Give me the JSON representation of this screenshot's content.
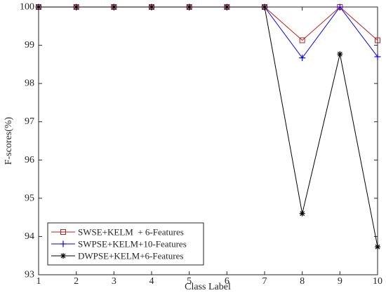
{
  "chart_data": {
    "type": "line",
    "title": "",
    "xlabel": "Class Label",
    "ylabel": "F-scores(%)",
    "x": [
      1,
      2,
      3,
      4,
      5,
      6,
      7,
      8,
      9,
      10
    ],
    "xlim": [
      1,
      10
    ],
    "ylim": [
      93,
      100
    ],
    "xticks": [
      "1",
      "2",
      "3",
      "4",
      "5",
      "6",
      "7",
      "8",
      "9",
      "10"
    ],
    "yticks": [
      "93",
      "94",
      "95",
      "96",
      "97",
      "98",
      "99",
      "100"
    ],
    "grid": false,
    "legend_position": "bottom-left",
    "series": [
      {
        "name": "SWSE+KELM  + 6-Features",
        "color": "#b22222",
        "marker": "square",
        "values": [
          100,
          100,
          100,
          100,
          100,
          100,
          100,
          99.13,
          100,
          99.13
        ]
      },
      {
        "name": "SWPSE+KELM+10-Features",
        "color": "#0000ff",
        "marker": "plus",
        "values": [
          100,
          100,
          100,
          100,
          100,
          100,
          100,
          98.67,
          100,
          98.7
        ]
      },
      {
        "name": "DWPSE+KELM+6-Features",
        "color": "#000000",
        "marker": "asterisk",
        "values": [
          100,
          100,
          100,
          100,
          100,
          100,
          100,
          94.6,
          98.77,
          93.73
        ]
      }
    ]
  }
}
